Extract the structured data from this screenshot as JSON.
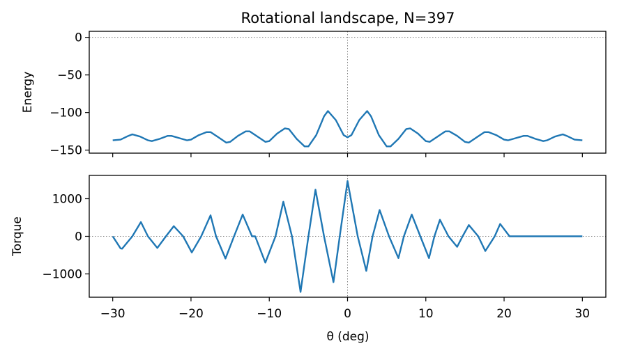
{
  "chart_data": {
    "type": "line",
    "title": "Rotational landscape, N=397",
    "xlabel": "θ  (deg)",
    "x_ticks": [
      -30,
      -20,
      -10,
      0,
      10,
      20,
      30
    ],
    "xlim": [
      -33,
      33
    ],
    "colors": {
      "series": "#1f77b4",
      "reference": "#808080"
    },
    "panels": [
      {
        "name": "energy",
        "ylabel": "Energy",
        "ylim": [
          -154,
          8
        ],
        "y_ticks": [
          0,
          -50,
          -100,
          -150
        ],
        "reference_lines": {
          "y": 0,
          "x": 0
        },
        "series": [
          {
            "x": [
              -30,
              -29,
              -28,
              -27.5,
              -26.5,
              -25.5,
              -25,
              -24,
              -23,
              -22.5,
              -21.5,
              -20.5,
              -20,
              -19,
              -18,
              -17.5,
              -16.5,
              -15.5,
              -15,
              -14,
              -13,
              -12.5,
              -11.5,
              -10.5,
              -10,
              -9,
              -8,
              -7.5,
              -6.5,
              -5.5,
              -5,
              -4,
              -3,
              -2.5,
              -1.5,
              -0.5,
              0,
              0.5,
              1.5,
              2.5,
              3,
              4,
              5,
              5.5,
              6.5,
              7.5,
              8,
              9,
              10,
              10.5,
              11.5,
              12.5,
              13,
              14,
              15,
              15.5,
              16.5,
              17.5,
              18,
              19,
              20,
              20.5,
              21.5,
              22.5,
              23,
              24,
              25,
              25.5,
              26.5,
              27.5,
              28,
              29,
              30
            ],
            "y": [
              -137,
              -136,
              -131,
              -129,
              -132,
              -137,
              -138,
              -135,
              -131,
              -131,
              -134,
              -137,
              -136,
              -130,
              -126,
              -126,
              -133,
              -140,
              -139,
              -131,
              -125,
              -125,
              -132,
              -139,
              -138,
              -128,
              -121,
              -122,
              -135,
              -145,
              -145,
              -130,
              -105,
              -98,
              -110,
              -130,
              -133,
              -130,
              -110,
              -98,
              -105,
              -130,
              -145,
              -145,
              -135,
              -122,
              -121,
              -128,
              -138,
              -139,
              -132,
              -125,
              -125,
              -131,
              -139,
              -140,
              -133,
              -126,
              -126,
              -130,
              -136,
              -137,
              -134,
              -131,
              -131,
              -135,
              -138,
              -137,
              -132,
              -129,
              -131,
              -136,
              -137
            ]
          }
        ]
      },
      {
        "name": "torque",
        "ylabel": "Torque",
        "ylim": [
          -1620,
          1620
        ],
        "y_ticks": [
          1000,
          0,
          -1000
        ],
        "reference_lines": {
          "y": 0,
          "x": 0
        },
        "series": [
          {
            "x": [
              -30,
              -29,
              -28.8,
              -27.5,
              -26.4,
              -25.5,
              -24.3,
              -23.2,
              -22.2,
              -21,
              -19.9,
              -18.7,
              -17.5,
              -16.8,
              -15.6,
              -14.5,
              -13.4,
              -12.2,
              -11.8,
              -10.5,
              -9.2,
              -8.2,
              -7.1,
              -6,
              -5,
              -4.1,
              -3,
              -1.8,
              -1,
              0,
              1.3,
              2.4,
              3.2,
              4.1,
              5.3,
              6.5,
              7.2,
              8.2,
              9.3,
              10.4,
              11.1,
              11.8,
              12.9,
              14,
              14.7,
              15.5,
              16.7,
              17.6,
              18.8,
              19.5,
              20.7,
              21.5,
              22.6,
              23.6,
              24.8,
              25.8,
              26.8,
              27.8,
              29,
              30
            ],
            "y": [
              0,
              -320,
              -330,
              0,
              380,
              0,
              -310,
              0,
              270,
              0,
              -430,
              0,
              560,
              0,
              -590,
              0,
              580,
              0,
              0,
              -700,
              0,
              920,
              0,
              -1480,
              0,
              1240,
              0,
              -1220,
              0,
              1470,
              0,
              -920,
              0,
              700,
              0,
              -580,
              0,
              580,
              0,
              -580,
              0,
              440,
              0,
              -280,
              0,
              300,
              0,
              -390,
              0,
              330,
              0,
              0,
              0,
              0,
              0,
              0,
              0,
              0,
              0,
              0
            ]
          }
        ]
      }
    ]
  }
}
